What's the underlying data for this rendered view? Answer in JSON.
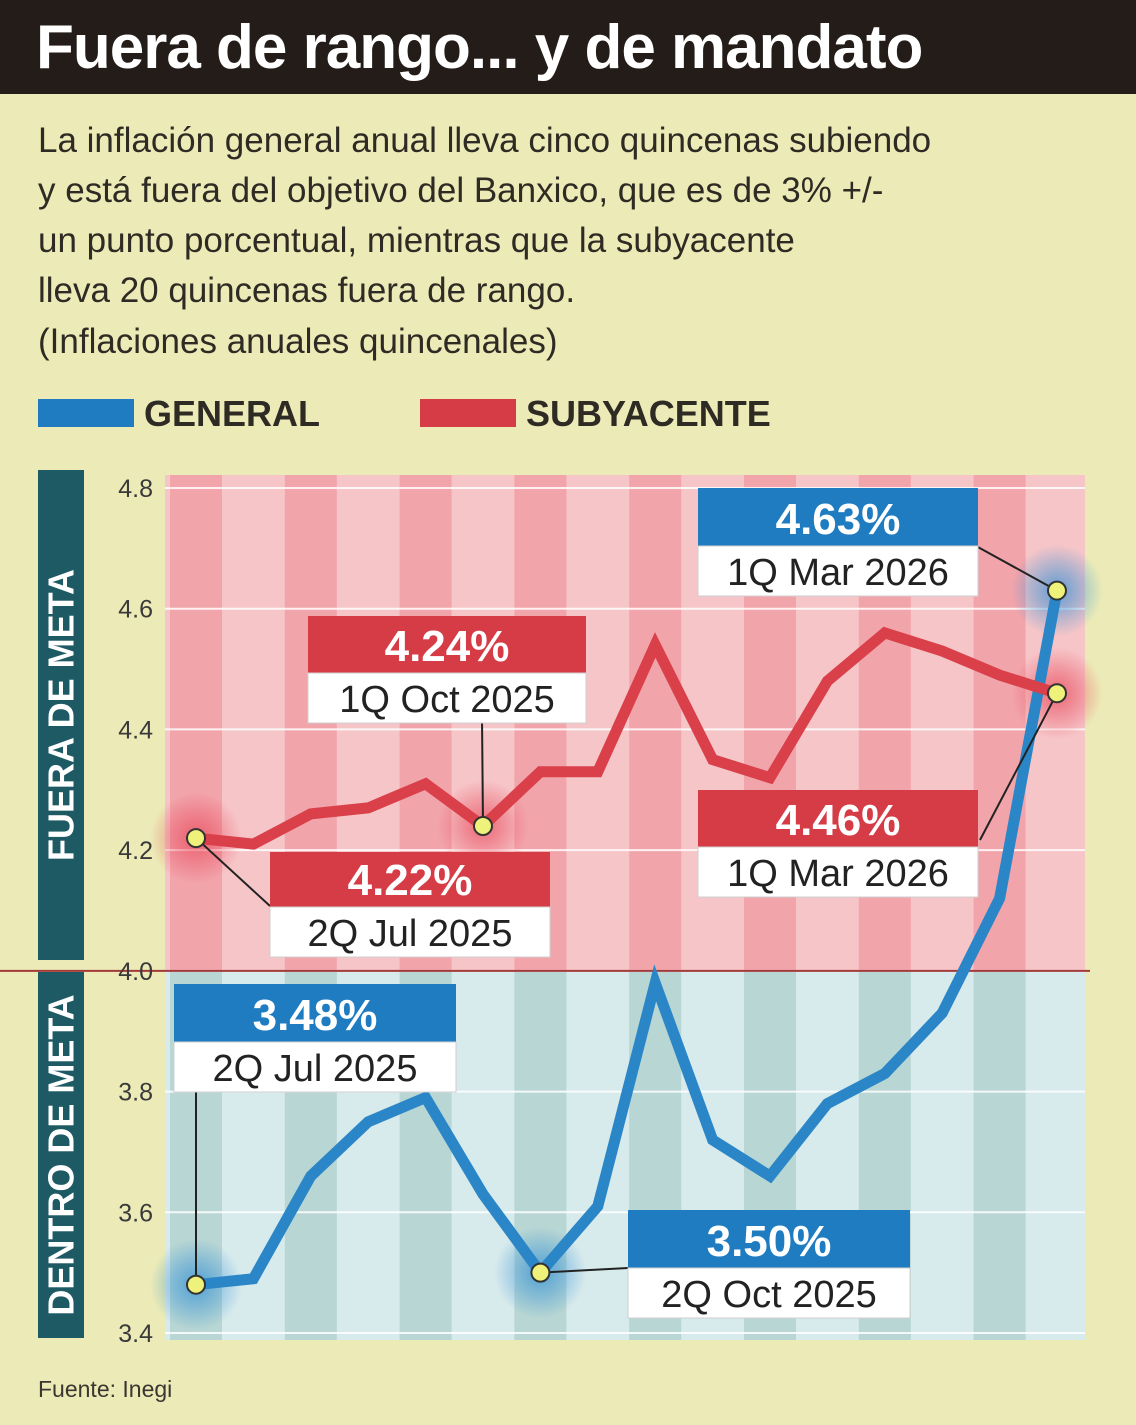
{
  "header": {
    "title": "Fuera de rango... y de mandato",
    "description": [
      "La inflación general anual lleva cinco quincenas subiendo",
      "y está fuera del objetivo del Banxico, que es de 3% +/-",
      "un punto porcentual, mientras que la subyacente",
      "lleva 20 quincenas fuera de rango."
    ],
    "subtitle": "(Inflaciones anuales quincenales)"
  },
  "legend": [
    {
      "label": "GENERAL",
      "color": "#1f7cc1"
    },
    {
      "label": "SUBYACENTE",
      "color": "#d63c46"
    }
  ],
  "zones": {
    "upper": "FUERA DE META",
    "lower": "DENTRO DE META"
  },
  "source": "Fuente: Inegi",
  "colors": {
    "general": "#2b86c8",
    "subyacente": "#d9404a",
    "upper_bg": "#f6c5c8",
    "upper_stripe": "#f2a4ab",
    "lower_bg": "#d7eaec",
    "lower_stripe": "#b8d6d3",
    "zone_label_bg": "#1e5a64",
    "marker": "#eef17a"
  },
  "chart_data": {
    "type": "line",
    "title": "Fuera de rango... y de mandato",
    "ylim": [
      3.4,
      4.8
    ],
    "y_ticks": [
      "4.8",
      "4.6",
      "4.4",
      "4.2",
      "4.0",
      "3.8",
      "3.6",
      "3.4"
    ],
    "y_tick_values": [
      4.8,
      4.6,
      4.4,
      4.2,
      4.0,
      3.8,
      3.6,
      3.4
    ],
    "threshold": 4.0,
    "x": [
      1,
      2,
      3,
      4,
      5,
      6,
      7,
      8,
      9,
      10,
      11,
      12,
      13,
      14,
      15,
      16
    ],
    "series": [
      {
        "name": "GENERAL",
        "values": [
          3.48,
          3.49,
          3.66,
          3.75,
          3.79,
          3.63,
          3.5,
          3.61,
          3.98,
          3.72,
          3.66,
          3.78,
          3.83,
          3.93,
          4.12,
          4.63
        ]
      },
      {
        "name": "SUBYACENTE",
        "values": [
          4.22,
          4.21,
          4.26,
          4.27,
          4.31,
          4.24,
          4.33,
          4.33,
          4.54,
          4.35,
          4.32,
          4.48,
          4.56,
          4.53,
          4.49,
          4.46
        ]
      }
    ],
    "annotations": [
      {
        "series": 1,
        "index": 0,
        "value": "4.22%",
        "label": "2Q Jul 2025",
        "color": "#d63c46"
      },
      {
        "series": 1,
        "index": 5,
        "value": "4.24%",
        "label": "1Q Oct 2025",
        "color": "#d63c46"
      },
      {
        "series": 1,
        "index": 15,
        "value": "4.46%",
        "label": "1Q Mar 2026",
        "color": "#d63c46"
      },
      {
        "series": 0,
        "index": 0,
        "value": "3.48%",
        "label": "2Q Jul 2025",
        "color": "#1f7cc1"
      },
      {
        "series": 0,
        "index": 6,
        "value": "3.50%",
        "label": "2Q Oct 2025",
        "color": "#1f7cc1"
      },
      {
        "series": 0,
        "index": 15,
        "value": "4.63%",
        "label": "1Q Mar 2026",
        "color": "#1f7cc1"
      }
    ]
  }
}
